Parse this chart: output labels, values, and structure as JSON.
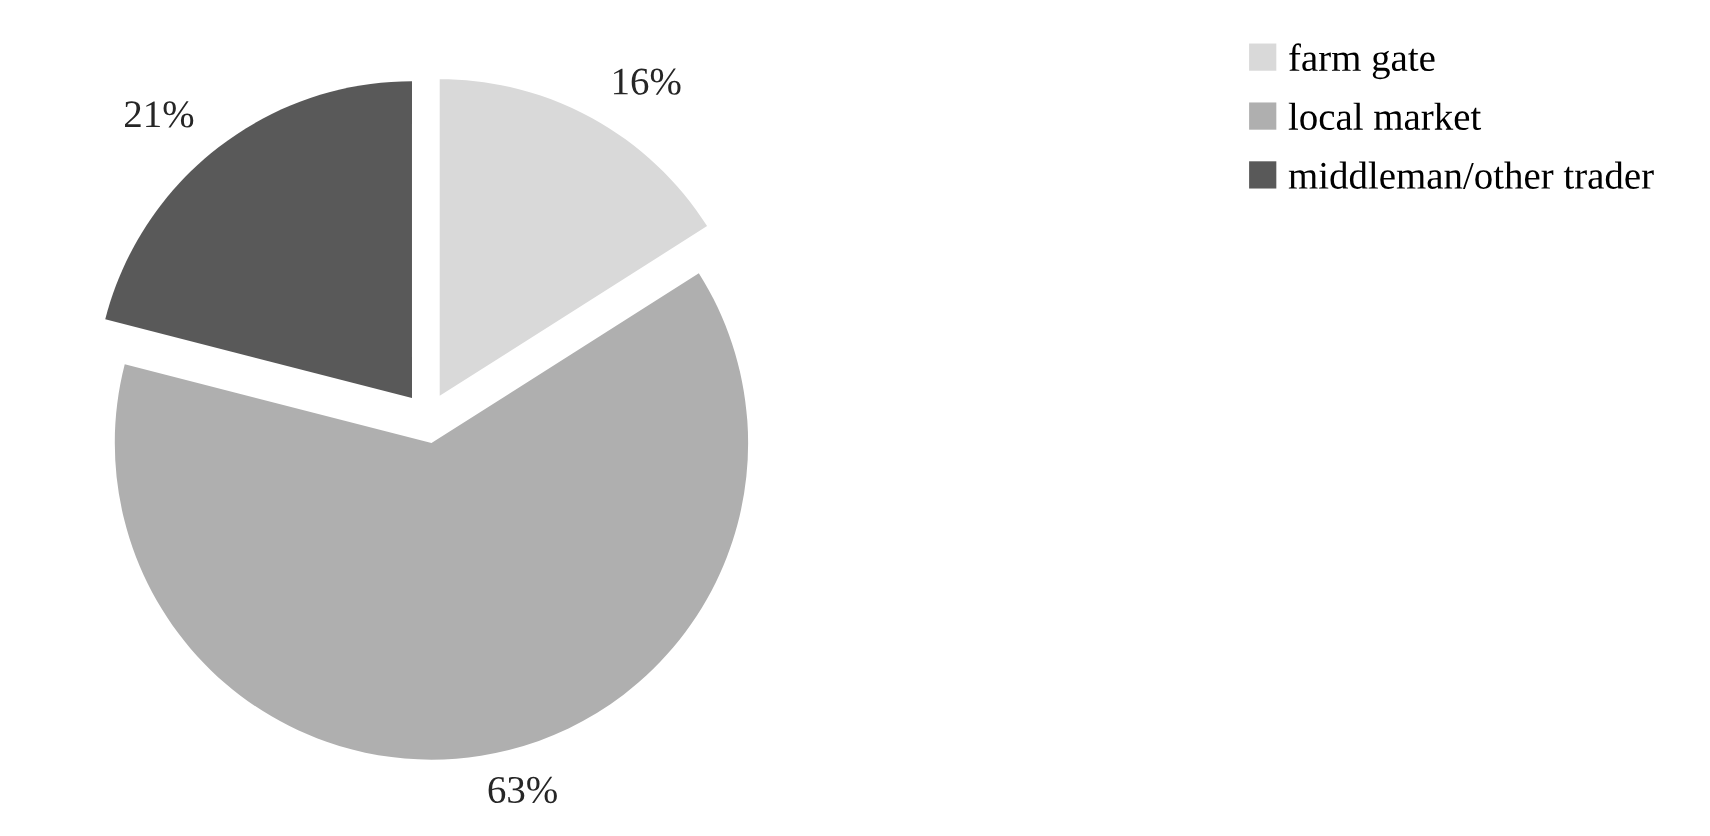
{
  "chart_data": {
    "type": "pie",
    "categories": [
      "farm gate",
      "local market",
      "middleman/other trader"
    ],
    "values": [
      16,
      63,
      21
    ],
    "colors": [
      "#d9d9d9",
      "#afafaf",
      "#595959"
    ],
    "value_labels": [
      "16%",
      "63%",
      "21%"
    ],
    "legend": "right"
  }
}
